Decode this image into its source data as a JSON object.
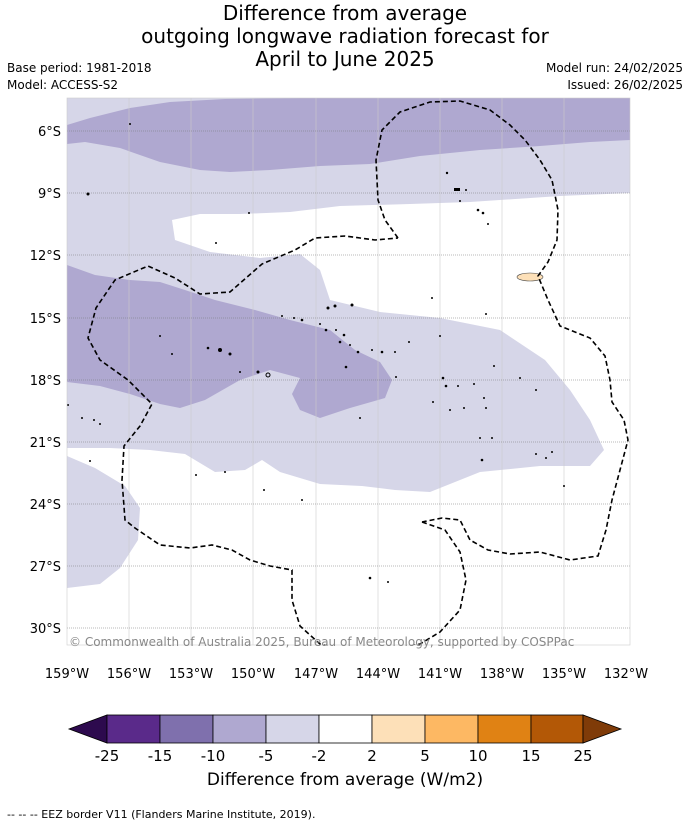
{
  "title_lines": [
    "Difference from average",
    "outgoing longwave radiation forecast for",
    "April to June 2025"
  ],
  "left_info": [
    "Base period: 1981-2018",
    "Model: ACCESS-S2"
  ],
  "right_info": [
    "Model run: 24/02/2025",
    "Issued: 26/02/2025"
  ],
  "lat_labels": [
    "6°S",
    "9°S",
    "12°S",
    "15°S",
    "18°S",
    "21°S",
    "24°S",
    "27°S",
    "30°S"
  ],
  "lon_labels": [
    "159°W",
    "156°W",
    "153°W",
    "150°W",
    "147°W",
    "144°W",
    "141°W",
    "138°W",
    "135°W",
    "132°W"
  ],
  "copyright": "© Commonwealth of Australia 2025, Bureau of Meteorology, supported by COSPPac",
  "colorbar": {
    "ticks": [
      "-25",
      "-15",
      "-10",
      "-5",
      "-2",
      "2",
      "5",
      "10",
      "15",
      "25"
    ],
    "colors": [
      "#5a2a8a",
      "#7f70ad",
      "#afa8d0",
      "#d6d6e8",
      "#ffffff",
      "#fde0b8",
      "#fdb863",
      "#e08214",
      "#b35806"
    ],
    "under_color": "#2d0a4e",
    "over_color": "#7f3b08",
    "title": "Difference from average (W/m2)"
  },
  "footer": "--  --  -- EEZ border V11 (Flanders Marine Institute, 2019)."
}
